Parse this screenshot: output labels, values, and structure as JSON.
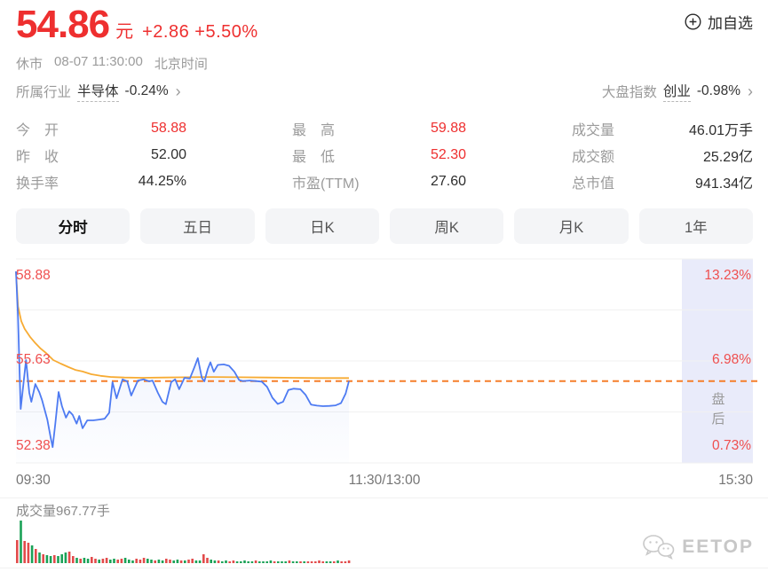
{
  "header": {
    "price": "54.86",
    "currency": "元",
    "change": "+2.86 +5.50%",
    "add_watchlist": "加自选",
    "market_status": "休市",
    "datetime": "08-07 11:30:00",
    "timezone": "北京时间",
    "industry_label": "所属行业",
    "industry_name": "半导体",
    "industry_change": "-0.24%",
    "index_label": "大盘指数",
    "index_name": "创业",
    "index_change": "-0.98%"
  },
  "stats": {
    "col1": [
      {
        "label": "今　开",
        "value": "58.88",
        "red": true
      },
      {
        "label": "昨　收",
        "value": "52.00",
        "red": false
      },
      {
        "label": "换手率",
        "value": "44.25%",
        "red": false
      }
    ],
    "col2": [
      {
        "label": "最　高",
        "value": "59.88",
        "red": true
      },
      {
        "label": "最　低",
        "value": "52.30",
        "red": true
      },
      {
        "label": "市盈(TTM)",
        "value": "27.60",
        "red": false
      }
    ],
    "col3": [
      {
        "label": "成交量",
        "value": "46.01万手",
        "red": false
      },
      {
        "label": "成交额",
        "value": "25.29亿",
        "red": false
      },
      {
        "label": "总市值",
        "value": "941.34亿",
        "red": false
      }
    ]
  },
  "tabs": [
    {
      "label": "分时"
    },
    {
      "label": "五日"
    },
    {
      "label": "日K"
    },
    {
      "label": "周K"
    },
    {
      "label": "月K"
    },
    {
      "label": "1年"
    }
  ],
  "chart_data": {
    "type": "line",
    "title": "分时走势",
    "x_axis": [
      "09:30",
      "11:30/13:00",
      "15:30"
    ],
    "y_left": [
      "58.88",
      "55.63",
      "52.38"
    ],
    "y_right": [
      "13.23%",
      "6.98%",
      "0.73%"
    ],
    "y_range": [
      52.38,
      58.88
    ],
    "prev_close": 52.0,
    "current_price": 54.86,
    "after_hours_label": "盘后",
    "series": [
      {
        "name": "price",
        "color": "#4e7bf2",
        "points": [
          [
            0,
            58.88
          ],
          [
            0.003,
            57.2
          ],
          [
            0.007,
            53.84
          ],
          [
            0.015,
            55.63
          ],
          [
            0.02,
            54.43
          ],
          [
            0.023,
            54.1
          ],
          [
            0.029,
            54.75
          ],
          [
            0.035,
            54.45
          ],
          [
            0.039,
            54.17
          ],
          [
            0.047,
            53.45
          ],
          [
            0.052,
            52.8
          ],
          [
            0.055,
            52.44
          ],
          [
            0.059,
            53.3
          ],
          [
            0.064,
            54.46
          ],
          [
            0.069,
            53.94
          ],
          [
            0.075,
            53.52
          ],
          [
            0.08,
            53.75
          ],
          [
            0.085,
            53.62
          ],
          [
            0.091,
            53.3
          ],
          [
            0.095,
            53.58
          ],
          [
            0.1,
            53.13
          ],
          [
            0.107,
            53.42
          ],
          [
            0.116,
            53.42
          ],
          [
            0.125,
            53.45
          ],
          [
            0.133,
            53.48
          ],
          [
            0.14,
            53.7
          ],
          [
            0.145,
            54.82
          ],
          [
            0.151,
            54.23
          ],
          [
            0.16,
            54.92
          ],
          [
            0.167,
            54.85
          ],
          [
            0.173,
            54.33
          ],
          [
            0.183,
            54.88
          ],
          [
            0.192,
            54.92
          ],
          [
            0.2,
            54.85
          ],
          [
            0.205,
            54.88
          ],
          [
            0.213,
            54.43
          ],
          [
            0.22,
            54.1
          ],
          [
            0.225,
            54.01
          ],
          [
            0.233,
            54.82
          ],
          [
            0.239,
            54.92
          ],
          [
            0.245,
            54.56
          ],
          [
            0.253,
            54.98
          ],
          [
            0.261,
            54.95
          ],
          [
            0.268,
            55.37
          ],
          [
            0.273,
            55.7
          ],
          [
            0.279,
            54.98
          ],
          [
            0.283,
            54.85
          ],
          [
            0.288,
            55.3
          ],
          [
            0.292,
            55.55
          ],
          [
            0.297,
            55.2
          ],
          [
            0.303,
            55.45
          ],
          [
            0.312,
            55.47
          ],
          [
            0.32,
            55.42
          ],
          [
            0.328,
            55.2
          ],
          [
            0.335,
            54.9
          ],
          [
            0.341,
            54.86
          ],
          [
            0.351,
            54.88
          ],
          [
            0.36,
            54.86
          ],
          [
            0.369,
            54.84
          ],
          [
            0.377,
            54.65
          ],
          [
            0.385,
            54.25
          ],
          [
            0.393,
            54.02
          ],
          [
            0.401,
            54.1
          ],
          [
            0.409,
            54.53
          ],
          [
            0.417,
            54.58
          ],
          [
            0.427,
            54.56
          ],
          [
            0.435,
            54.35
          ],
          [
            0.443,
            54.0
          ],
          [
            0.452,
            53.96
          ],
          [
            0.461,
            53.94
          ],
          [
            0.471,
            53.95
          ],
          [
            0.48,
            53.97
          ],
          [
            0.488,
            54.05
          ],
          [
            0.495,
            54.4
          ],
          [
            0.5,
            54.86
          ]
        ]
      },
      {
        "name": "avg",
        "color": "#f7ab33",
        "points": [
          [
            0,
            58.88
          ],
          [
            0.003,
            57.6
          ],
          [
            0.008,
            57.05
          ],
          [
            0.013,
            56.77
          ],
          [
            0.021,
            56.48
          ],
          [
            0.029,
            56.25
          ],
          [
            0.037,
            56.05
          ],
          [
            0.045,
            55.89
          ],
          [
            0.056,
            55.63
          ],
          [
            0.067,
            55.5
          ],
          [
            0.079,
            55.37
          ],
          [
            0.089,
            55.27
          ],
          [
            0.1,
            55.21
          ],
          [
            0.113,
            55.11
          ],
          [
            0.127,
            55.05
          ],
          [
            0.143,
            55.01
          ],
          [
            0.163,
            54.99
          ],
          [
            0.189,
            54.98
          ],
          [
            0.223,
            54.99
          ],
          [
            0.256,
            55.0
          ],
          [
            0.296,
            55.01
          ],
          [
            0.336,
            55.0
          ],
          [
            0.376,
            54.99
          ],
          [
            0.416,
            54.98
          ],
          [
            0.456,
            54.97
          ],
          [
            0.5,
            54.97
          ]
        ]
      }
    ],
    "volume": {
      "label": "成交量967.77手",
      "heights": [
        26,
        48,
        25,
        23,
        20,
        16,
        12,
        10,
        9,
        8,
        9,
        8,
        10,
        12,
        13,
        8,
        6,
        5,
        6,
        5,
        7,
        5,
        4,
        5,
        6,
        4,
        5,
        4,
        5,
        6,
        4,
        3,
        5,
        4,
        6,
        5,
        4,
        3,
        4,
        3,
        5,
        4,
        3,
        4,
        3,
        3,
        4,
        5,
        3,
        3,
        10,
        6,
        4,
        3,
        3,
        2,
        3,
        2,
        3,
        2,
        2,
        3,
        2,
        2,
        3,
        2,
        2,
        2,
        3,
        2,
        2,
        2,
        2,
        3,
        2,
        2,
        2,
        2,
        2,
        2,
        2,
        3,
        2,
        2,
        2,
        2,
        3,
        2,
        2,
        3
      ],
      "colors": "rgrrgrgrggrgggrrgrggrrgrrggrrgggrrrggrggrrggrgrrggrrggrggrrgggggrggggrgggrggrgrrrrrggrgrrr"
    }
  },
  "watermark": {
    "text": "EETOP"
  },
  "colors": {
    "up_red": "#ee2f2f",
    "chart_label_red": "#ef4f4f",
    "price_line": "#4e7bf2",
    "avg_line": "#f7ab33",
    "dash_line": "#f57e2a",
    "after_hours_band": "#e9ebfa",
    "vol_up": "#e24b4b",
    "vol_down": "#1ba257"
  }
}
